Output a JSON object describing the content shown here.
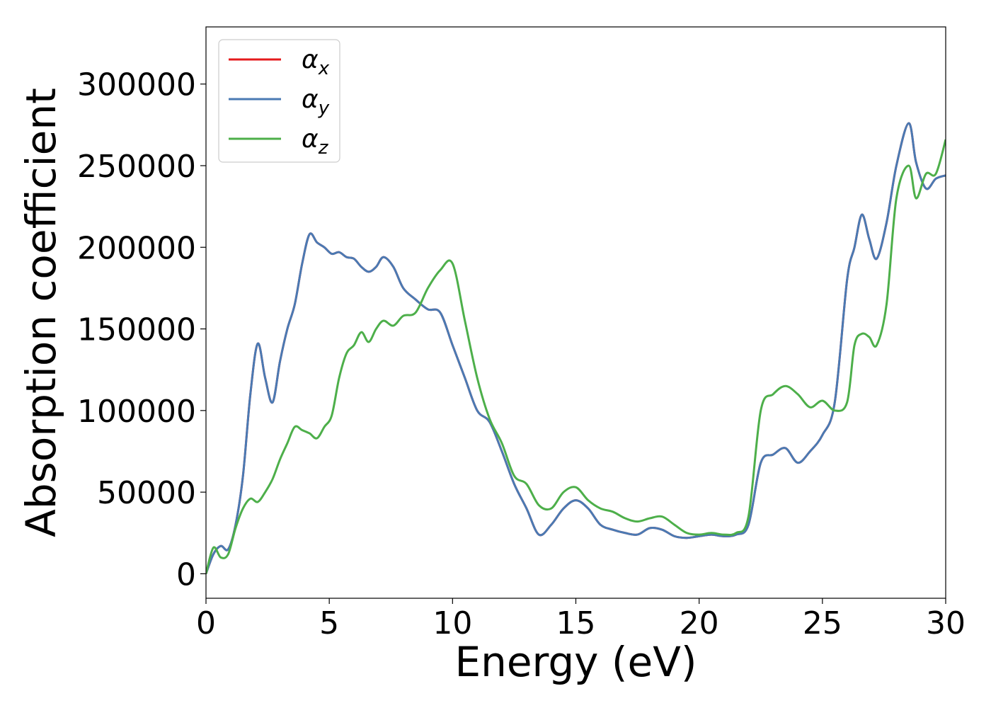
{
  "chart_data": {
    "type": "line",
    "xlabel": "Energy (eV)",
    "ylabel": "Absorption coefficient",
    "xlim": [
      0,
      30
    ],
    "ylim": [
      -15000,
      335000
    ],
    "xticks": [
      0,
      5,
      10,
      15,
      20,
      25,
      30
    ],
    "yticks": [
      0,
      50000,
      100000,
      150000,
      200000,
      250000,
      300000
    ],
    "grid": false,
    "legend_position": "top-left",
    "series": [
      {
        "name": "α_x",
        "symbol": "α",
        "subscript": "x",
        "color": "#e41a1c",
        "x": [
          0,
          0.3,
          0.6,
          0.9,
          1.2,
          1.5,
          1.8,
          2.1,
          2.4,
          2.7,
          3.0,
          3.3,
          3.6,
          3.9,
          4.2,
          4.5,
          4.8,
          5.1,
          5.4,
          5.7,
          6.0,
          6.3,
          6.6,
          6.9,
          7.2,
          7.6,
          8.0,
          8.5,
          9.0,
          9.5,
          10.0,
          10.5,
          11.0,
          11.5,
          12.0,
          12.5,
          13.0,
          13.5,
          14.0,
          14.5,
          15.0,
          15.5,
          16.0,
          16.5,
          17.0,
          17.5,
          18.0,
          18.5,
          19.0,
          19.5,
          20.0,
          20.5,
          21.0,
          21.5,
          22.0,
          22.5,
          23.0,
          23.5,
          24.0,
          24.5,
          25.0,
          25.5,
          26.0,
          26.3,
          26.6,
          26.9,
          27.2,
          27.6,
          28.0,
          28.5,
          28.8,
          29.2,
          29.6,
          30.0
        ],
        "values": [
          0,
          12000,
          17000,
          15000,
          30000,
          60000,
          110000,
          141000,
          120000,
          105000,
          130000,
          150000,
          165000,
          190000,
          208000,
          203000,
          200000,
          196000,
          197000,
          194000,
          193000,
          188000,
          185000,
          188000,
          194000,
          188000,
          175000,
          168000,
          162000,
          160000,
          140000,
          120000,
          100000,
          93000,
          75000,
          55000,
          40000,
          24000,
          30000,
          40000,
          45000,
          40000,
          30000,
          27000,
          25000,
          24000,
          28000,
          27000,
          23000,
          22000,
          23000,
          24000,
          23000,
          24000,
          30000,
          68000,
          73000,
          77000,
          68000,
          75000,
          85000,
          105000,
          180000,
          200000,
          220000,
          205000,
          193000,
          215000,
          250000,
          276000,
          252000,
          236000,
          242000,
          244000
        ]
      },
      {
        "name": "α_y",
        "symbol": "α",
        "subscript": "y",
        "color": "#4a7ab3",
        "x": [
          0,
          0.3,
          0.6,
          0.9,
          1.2,
          1.5,
          1.8,
          2.1,
          2.4,
          2.7,
          3.0,
          3.3,
          3.6,
          3.9,
          4.2,
          4.5,
          4.8,
          5.1,
          5.4,
          5.7,
          6.0,
          6.3,
          6.6,
          6.9,
          7.2,
          7.6,
          8.0,
          8.5,
          9.0,
          9.5,
          10.0,
          10.5,
          11.0,
          11.5,
          12.0,
          12.5,
          13.0,
          13.5,
          14.0,
          14.5,
          15.0,
          15.5,
          16.0,
          16.5,
          17.0,
          17.5,
          18.0,
          18.5,
          19.0,
          19.5,
          20.0,
          20.5,
          21.0,
          21.5,
          22.0,
          22.5,
          23.0,
          23.5,
          24.0,
          24.5,
          25.0,
          25.5,
          26.0,
          26.3,
          26.6,
          26.9,
          27.2,
          27.6,
          28.0,
          28.5,
          28.8,
          29.2,
          29.6,
          30.0
        ],
        "values": [
          0,
          12000,
          17000,
          15000,
          30000,
          60000,
          110000,
          141000,
          120000,
          105000,
          130000,
          150000,
          165000,
          190000,
          208000,
          203000,
          200000,
          196000,
          197000,
          194000,
          193000,
          188000,
          185000,
          188000,
          194000,
          188000,
          175000,
          168000,
          162000,
          160000,
          140000,
          120000,
          100000,
          93000,
          75000,
          55000,
          40000,
          24000,
          30000,
          40000,
          45000,
          40000,
          30000,
          27000,
          25000,
          24000,
          28000,
          27000,
          23000,
          22000,
          23000,
          24000,
          23000,
          24000,
          30000,
          68000,
          73000,
          77000,
          68000,
          75000,
          85000,
          105000,
          180000,
          200000,
          220000,
          205000,
          193000,
          215000,
          250000,
          276000,
          252000,
          236000,
          242000,
          244000
        ]
      },
      {
        "name": "α_z",
        "symbol": "α",
        "subscript": "z",
        "color": "#4daf4a",
        "x": [
          0,
          0.3,
          0.6,
          0.9,
          1.2,
          1.5,
          1.8,
          2.1,
          2.4,
          2.7,
          3.0,
          3.3,
          3.6,
          3.9,
          4.2,
          4.5,
          4.8,
          5.1,
          5.4,
          5.7,
          6.0,
          6.3,
          6.6,
          6.9,
          7.2,
          7.6,
          8.0,
          8.5,
          9.0,
          9.5,
          10.0,
          10.5,
          11.0,
          11.5,
          12.0,
          12.5,
          13.0,
          13.5,
          14.0,
          14.5,
          15.0,
          15.5,
          16.0,
          16.5,
          17.0,
          17.5,
          18.0,
          18.5,
          19.0,
          19.5,
          20.0,
          20.5,
          21.0,
          21.5,
          22.0,
          22.5,
          23.0,
          23.5,
          24.0,
          24.5,
          25.0,
          25.5,
          26.0,
          26.3,
          26.6,
          26.9,
          27.2,
          27.6,
          28.0,
          28.5,
          28.8,
          29.2,
          29.6,
          30.0
        ],
        "values": [
          0,
          16000,
          10000,
          12000,
          28000,
          40000,
          46000,
          44000,
          50000,
          58000,
          70000,
          80000,
          90000,
          88000,
          86000,
          83000,
          90000,
          97000,
          120000,
          135000,
          140000,
          148000,
          142000,
          150000,
          155000,
          152000,
          158000,
          160000,
          175000,
          186000,
          190000,
          155000,
          120000,
          95000,
          80000,
          60000,
          55000,
          42000,
          40000,
          50000,
          53000,
          45000,
          40000,
          38000,
          34000,
          32000,
          34000,
          35000,
          30000,
          25000,
          24000,
          25000,
          24000,
          25000,
          35000,
          100000,
          110000,
          115000,
          110000,
          102000,
          106000,
          100000,
          105000,
          140000,
          147000,
          145000,
          140000,
          165000,
          230000,
          250000,
          230000,
          245000,
          245000,
          266000
        ]
      }
    ]
  }
}
